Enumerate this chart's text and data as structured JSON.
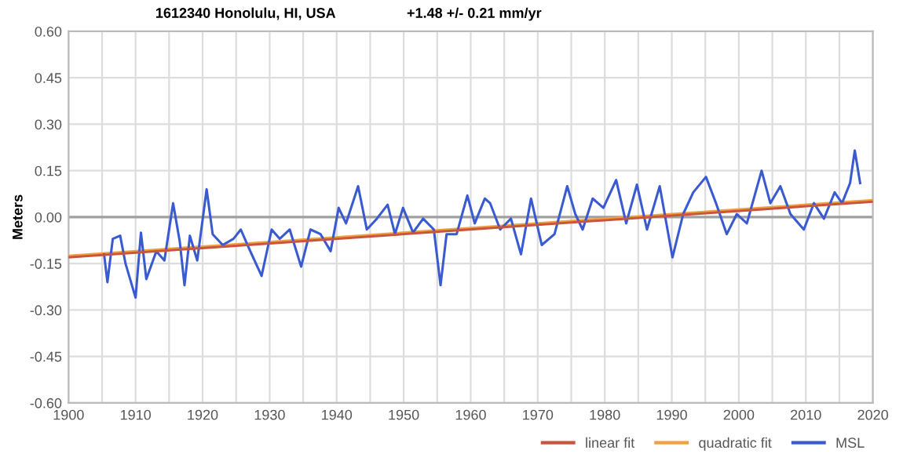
{
  "chart_data": {
    "type": "line",
    "title": "1612340 Honolulu, HI, USA",
    "subtitle": "+1.48 +/- 0.21 mm/yr",
    "ylabel": "Meters",
    "xlim": [
      1900,
      2020
    ],
    "xticks": [
      1900,
      {
        "value": 1905,
        "label": null
      },
      1910,
      {
        "value": 1915,
        "label": null
      },
      1920,
      {
        "value": 1925,
        "label": null
      },
      1930,
      {
        "value": 1935,
        "label": null
      },
      1940,
      {
        "value": 1945,
        "label": null
      },
      1950,
      {
        "value": 1955,
        "label": null
      },
      1960,
      {
        "value": 1965,
        "label": null
      },
      1970,
      {
        "value": 1975,
        "label": null
      },
      1980,
      {
        "value": 1985,
        "label": null
      },
      1990,
      {
        "value": 1995,
        "label": null
      },
      2000,
      {
        "value": 2005,
        "label": null
      },
      2010,
      {
        "value": 2015,
        "label": null
      },
      2020
    ],
    "ylim": [
      -0.6,
      0.6
    ],
    "yticks": [
      {
        "value": -0.6,
        "label": "-0.60"
      },
      {
        "value": -0.45,
        "label": "-0.45"
      },
      {
        "value": -0.3,
        "label": "-0.30"
      },
      {
        "value": -0.15,
        "label": "-0.15"
      },
      {
        "value": 0,
        "label": "0.00"
      },
      {
        "value": 0.15,
        "label": "0.15"
      },
      {
        "value": 0.3,
        "label": "0.30"
      },
      {
        "value": 0.45,
        "label": "0.45"
      },
      {
        "value": 0.6,
        "label": "0.60"
      }
    ],
    "grid": true,
    "legend": "bottom right",
    "marker": "none",
    "line_style": "solid",
    "ref_lines": [
      {
        "axis": "y",
        "value": 0,
        "label": null,
        "color": "#a0a0a0"
      }
    ],
    "series": [
      {
        "name": "linear fit",
        "color": "#c8553d",
        "x": [
          1900,
          2020
        ],
        "values": [
          -0.13,
          0.05
        ]
      },
      {
        "name": "quadratic fit",
        "color": "#f0a040",
        "x": [
          1900,
          1960,
          2020
        ],
        "values": [
          -0.125,
          -0.035,
          0.055
        ]
      },
      {
        "name": "MSL",
        "color": "#3a5bd0",
        "x": [
          1905.3,
          1905.8,
          1906.6,
          1907.7,
          1908.5,
          1910.0,
          1910.8,
          1911.6,
          1913.1,
          1914.3,
          1915.6,
          1916.6,
          1917.3,
          1918.1,
          1919.2,
          1920.6,
          1921.5,
          1923.0,
          1924.6,
          1925.7,
          1926.9,
          1928.8,
          1930.3,
          1931.5,
          1933.0,
          1934.7,
          1936.1,
          1937.6,
          1939.1,
          1940.3,
          1941.4,
          1943.2,
          1944.5,
          1946.0,
          1947.6,
          1948.7,
          1949.9,
          1951.4,
          1952.9,
          1954.5,
          1955.5,
          1956.4,
          1957.9,
          1959.5,
          1960.6,
          1962.1,
          1962.9,
          1964.4,
          1966.0,
          1967.5,
          1969.0,
          1970.6,
          1972.5,
          1974.4,
          1975.6,
          1976.7,
          1978.2,
          1979.8,
          1981.7,
          1983.2,
          1984.8,
          1986.3,
          1988.2,
          1990.1,
          1991.7,
          1993.2,
          1995.1,
          1996.6,
          1998.2,
          1999.7,
          2001.2,
          2003.4,
          2004.7,
          2006.2,
          2007.7,
          2009.7,
          2011.2,
          2012.7,
          2014.3,
          2015.4,
          2016.6,
          2017.3,
          2018.1
        ],
        "values": [
          -0.12,
          -0.21,
          -0.07,
          -0.06,
          -0.15,
          -0.26,
          -0.05,
          -0.2,
          -0.11,
          -0.14,
          0.045,
          -0.08,
          -0.22,
          -0.06,
          -0.14,
          0.09,
          -0.055,
          -0.09,
          -0.07,
          -0.04,
          -0.1,
          -0.19,
          -0.04,
          -0.07,
          -0.04,
          -0.16,
          -0.04,
          -0.055,
          -0.11,
          0.03,
          -0.02,
          0.1,
          -0.04,
          -0.005,
          0.04,
          -0.055,
          0.03,
          -0.05,
          -0.005,
          -0.04,
          -0.22,
          -0.055,
          -0.055,
          0.07,
          -0.02,
          0.06,
          0.045,
          -0.04,
          -0.005,
          -0.12,
          0.06,
          -0.09,
          -0.055,
          0.1,
          0.01,
          -0.04,
          0.06,
          0.03,
          0.12,
          -0.02,
          0.105,
          -0.04,
          0.1,
          -0.13,
          0.01,
          0.08,
          0.13,
          0.045,
          -0.055,
          0.01,
          -0.02,
          0.15,
          0.045,
          0.1,
          0.01,
          -0.04,
          0.045,
          -0.005,
          0.08,
          0.045,
          0.11,
          0.215,
          0.11
        ]
      }
    ]
  }
}
